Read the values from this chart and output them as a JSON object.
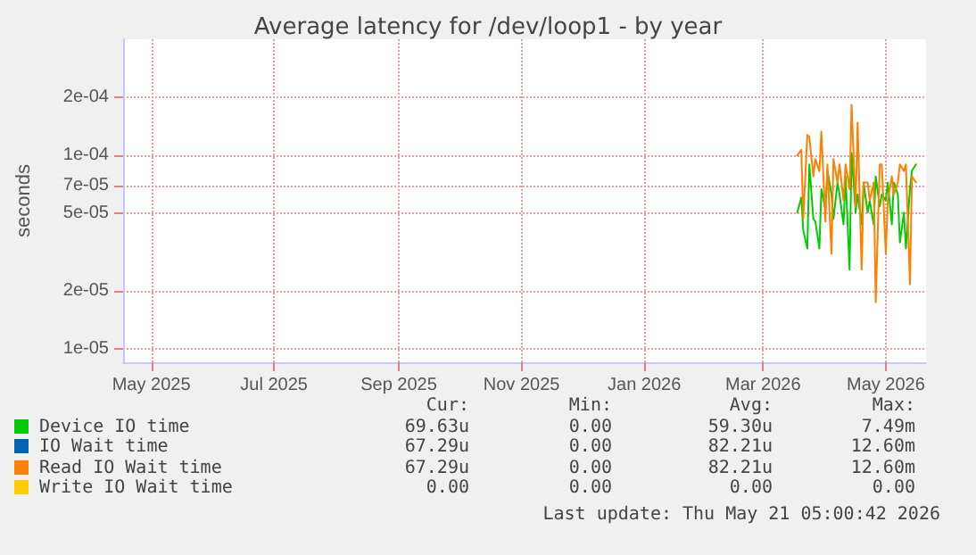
{
  "chart_data": {
    "type": "line",
    "title": "Average latency for /dev/loop1 - by year",
    "ylabel": "seconds",
    "x": [
      "2026-03-18",
      "2026-03-20",
      "2026-03-21",
      "2026-03-23",
      "2026-03-24",
      "2026-03-26",
      "2026-03-27",
      "2026-03-29",
      "2026-03-30",
      "2026-04-01",
      "2026-04-02",
      "2026-04-04",
      "2026-04-05",
      "2026-04-07",
      "2026-04-08",
      "2026-04-10",
      "2026-04-11",
      "2026-04-13",
      "2026-04-14",
      "2026-04-16",
      "2026-04-17",
      "2026-04-19",
      "2026-04-20",
      "2026-04-22",
      "2026-04-23",
      "2026-04-25",
      "2026-04-26",
      "2026-04-28",
      "2026-04-29",
      "2026-05-01",
      "2026-05-02",
      "2026-05-04",
      "2026-05-05",
      "2026-05-07",
      "2026-05-08",
      "2026-05-10",
      "2026-05-11",
      "2026-05-13",
      "2026-05-14",
      "2026-05-16"
    ],
    "series": [
      {
        "name": "Device IO time",
        "color": "#00cc00",
        "values": [
          5.07e-05,
          6.05e-05,
          4.1e-05,
          3.3e-05,
          9e-05,
          4.7e-05,
          4.55e-05,
          3.3e-05,
          6.7e-05,
          5.26e-05,
          8.35e-05,
          6.3e-05,
          4.7e-05,
          7.25e-05,
          6.3e-05,
          4.4e-05,
          7.8e-05,
          2.57e-05,
          0.000103,
          5.07e-05,
          6.3e-05,
          4.4e-05,
          7.25e-05,
          5.07e-05,
          5.85e-05,
          4.4e-05,
          7.8e-05,
          5.45e-05,
          6.3e-05,
          5.85e-05,
          7.25e-05,
          4.4e-05,
          7.25e-05,
          6.3e-05,
          3.55e-05,
          5.07e-05,
          3.3e-05,
          6.7e-05,
          8.35e-05,
          9e-05
        ]
      },
      {
        "name": "IO Wait time",
        "color": "#0066b3",
        "values": [
          null,
          null,
          null,
          null,
          null,
          null,
          null,
          null,
          null,
          null,
          null,
          null,
          null,
          null,
          null,
          null,
          null,
          null,
          null,
          null,
          null,
          null,
          null,
          null,
          null,
          null,
          null,
          null,
          null,
          null,
          null,
          null,
          null,
          null,
          null,
          null,
          null,
          null,
          null,
          null
        ]
      },
      {
        "name": "Read IO Wait time",
        "color": "#ff8000",
        "values": [
          0.0001,
          0.000107,
          4.7e-05,
          0.000128,
          0.000125,
          7.8e-05,
          9.6e-05,
          8.3e-05,
          0.000133,
          4.55e-05,
          9e-05,
          3.1e-05,
          9.6e-05,
          7.25e-05,
          9e-05,
          5.85e-05,
          9e-05,
          6.7e-05,
          0.000183,
          5.4e-05,
          0.000148,
          2.57e-05,
          7.25e-05,
          7.25e-05,
          5.85e-05,
          7.25e-05,
          1.74e-05,
          9e-05,
          9e-05,
          3.1e-05,
          5.85e-05,
          7.8e-05,
          6.3e-05,
          7.25e-05,
          9e-05,
          8.3e-05,
          9e-05,
          2.15e-05,
          7.8e-05,
          7.25e-05
        ]
      },
      {
        "name": "Write IO Wait time",
        "color": "#ffcc00",
        "values": [
          null,
          null,
          null,
          null,
          null,
          null,
          null,
          null,
          null,
          null,
          null,
          null,
          null,
          null,
          null,
          null,
          null,
          null,
          null,
          null,
          null,
          null,
          null,
          null,
          null,
          null,
          null,
          null,
          null,
          null,
          null,
          null,
          null,
          null,
          null,
          null,
          null,
          null,
          null,
          null
        ]
      }
    ],
    "xlim": [
      "2025-04-17",
      "2026-05-21"
    ],
    "xticks": [
      {
        "value": "2025-05-01",
        "label": "May 2025"
      },
      {
        "value": "2025-07-01",
        "label": "Jul 2025"
      },
      {
        "value": "2025-09-01",
        "label": "Sep 2025"
      },
      {
        "value": "2025-11-01",
        "label": "Nov 2025"
      },
      {
        "value": "2026-01-01",
        "label": "Jan 2026"
      },
      {
        "value": "2026-03-01",
        "label": "Mar 2026"
      },
      {
        "value": "2026-05-01",
        "label": "May 2026"
      }
    ],
    "ylim": [
      8.5e-06,
      0.0004
    ],
    "yticks": [
      {
        "value": 1e-05,
        "label": "1e-05"
      },
      {
        "value": 2e-05,
        "label": "2e-05"
      },
      {
        "value": 5e-05,
        "label": "5e-05"
      },
      {
        "value": 7e-05,
        "label": "7e-05"
      },
      {
        "value": 0.0001,
        "label": "1e-04"
      },
      {
        "value": 0.0002,
        "label": "2e-04"
      }
    ],
    "log": "y",
    "grid": true,
    "legend": "bottom",
    "marker": "none",
    "line_style": "solid",
    "annotations": [
      "Cur:",
      "Min:",
      "Avg:",
      "Max:",
      "69.63u",
      "0.00",
      "59.30u",
      "7.49m",
      "67.29u",
      "0.00",
      "82.21u",
      "12.60m",
      "67.29u",
      "0.00",
      "82.21u",
      "12.60m",
      "0.00",
      "0.00",
      "0.00",
      "0.00",
      "Last update: Thu May 21 05:00:42 2026"
    ]
  }
}
